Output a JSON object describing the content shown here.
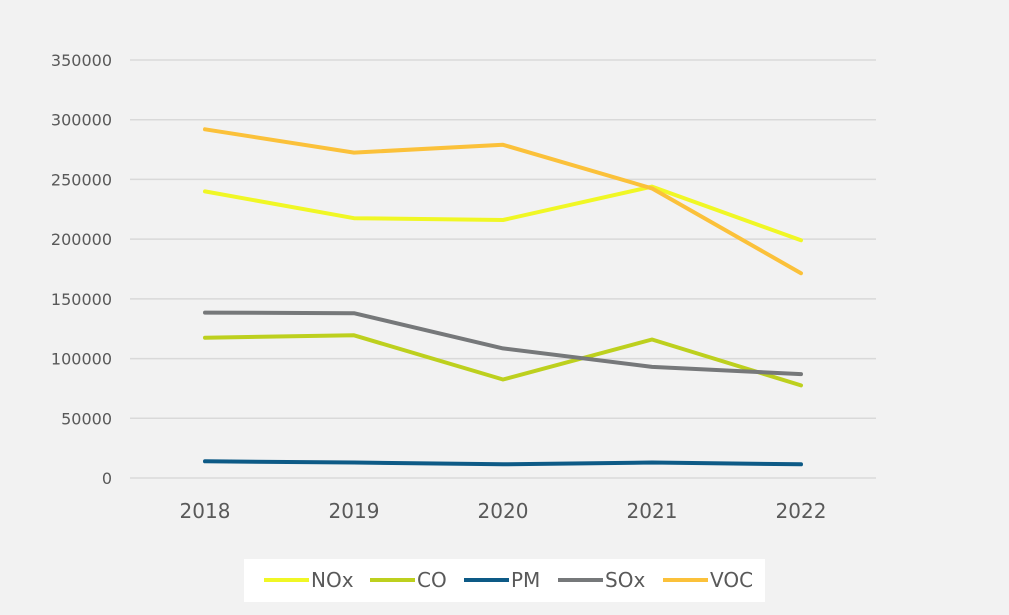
{
  "chart_data": {
    "type": "line",
    "categories": [
      "2018",
      "2019",
      "2020",
      "2021",
      "2022"
    ],
    "ylim": [
      0,
      350000
    ],
    "yticks": [
      "0",
      "50000",
      "100000",
      "150000",
      "200000",
      "250000",
      "300000",
      "350000"
    ],
    "grid": "horizontal",
    "legend": "bottom",
    "series": [
      {
        "name": "NOx",
        "color": "#f0f725",
        "values": [
          240000,
          217500,
          216000,
          244000,
          199000
        ]
      },
      {
        "name": "CO",
        "color": "#bdd01e",
        "values": [
          117500,
          119500,
          82500,
          116000,
          77500
        ]
      },
      {
        "name": "PM",
        "color": "#0d5a86",
        "values": [
          14000,
          13000,
          11500,
          13000,
          11500
        ]
      },
      {
        "name": "SOx",
        "color": "#76787a",
        "values": [
          138500,
          138000,
          108500,
          93000,
          87000
        ]
      },
      {
        "name": "VOC",
        "color": "#fbc13a",
        "values": [
          292000,
          272500,
          279000,
          242500,
          171500
        ]
      }
    ]
  }
}
